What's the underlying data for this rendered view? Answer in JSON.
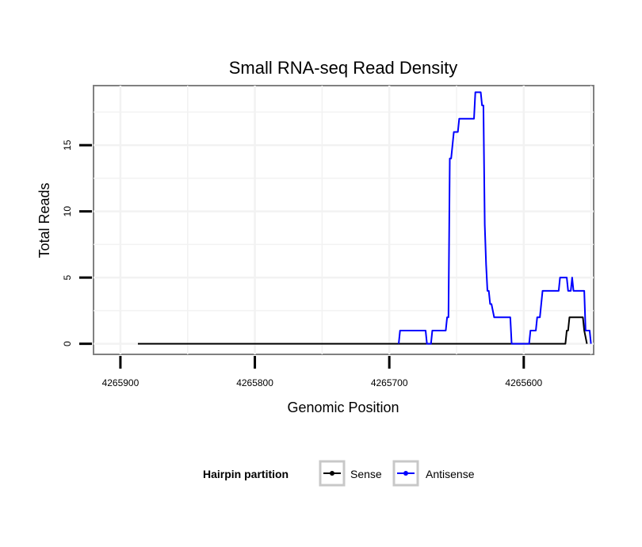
{
  "chart_data": {
    "type": "line",
    "title": "Small RNA-seq Read Density",
    "xlabel": "Genomic Position",
    "ylabel": "Total Reads",
    "x_reversed": true,
    "xlim": [
      4265920,
      4265548
    ],
    "ylim": [
      -0.8,
      19.5
    ],
    "x_ticks": [
      4265900,
      4265800,
      4265700,
      4265600
    ],
    "x_tick_labels": [
      "4265900",
      "4265800",
      "4265700",
      "4265600"
    ],
    "y_ticks": [
      0,
      5,
      10,
      15
    ],
    "y_tick_labels": [
      "0",
      "5",
      "10",
      "15"
    ],
    "grid": true,
    "legend": {
      "title": "Hairpin partition",
      "position": "bottom",
      "entries": [
        {
          "name": "Sense",
          "color": "#000000"
        },
        {
          "name": "Antisense",
          "color": "#0000ff"
        }
      ]
    },
    "series": [
      {
        "name": "Sense",
        "color": "#000000",
        "points": [
          [
            4265887,
            0
          ],
          [
            4265569,
            0
          ],
          [
            4265568,
            1
          ],
          [
            4265567,
            1
          ],
          [
            4265566,
            2
          ],
          [
            4265556,
            2
          ],
          [
            4265555,
            1
          ],
          [
            4265553,
            0
          ]
        ]
      },
      {
        "name": "Antisense",
        "color": "#0000ff",
        "points": [
          [
            4265693,
            0
          ],
          [
            4265692,
            1
          ],
          [
            4265673,
            1
          ],
          [
            4265672,
            0
          ],
          [
            4265672,
            0
          ],
          [
            4265669,
            0
          ],
          [
            4265668,
            1
          ],
          [
            4265658,
            1
          ],
          [
            4265657,
            2
          ],
          [
            4265656,
            2
          ],
          [
            4265655,
            14
          ],
          [
            4265654,
            14
          ],
          [
            4265653,
            15
          ],
          [
            4265652,
            16
          ],
          [
            4265649,
            16
          ],
          [
            4265648,
            17
          ],
          [
            4265637,
            17
          ],
          [
            4265636,
            19
          ],
          [
            4265632,
            19
          ],
          [
            4265631,
            18
          ],
          [
            4265630,
            18
          ],
          [
            4265629,
            9
          ],
          [
            4265628,
            6
          ],
          [
            4265627,
            4
          ],
          [
            4265626,
            4
          ],
          [
            4265625,
            3
          ],
          [
            4265624,
            3
          ],
          [
            4265622,
            2
          ],
          [
            4265610,
            2
          ],
          [
            4265609,
            0
          ],
          [
            4265596,
            0
          ],
          [
            4265595,
            1
          ],
          [
            4265591,
            1
          ],
          [
            4265590,
            2
          ],
          [
            4265588,
            2
          ],
          [
            4265587,
            3
          ],
          [
            4265586,
            4
          ],
          [
            4265574,
            4
          ],
          [
            4265573,
            5
          ],
          [
            4265568,
            5
          ],
          [
            4265567,
            4
          ],
          [
            4265565,
            4
          ],
          [
            4265564,
            5
          ],
          [
            4265563,
            4
          ],
          [
            4265555,
            4
          ],
          [
            4265554,
            1
          ],
          [
            4265551,
            1
          ],
          [
            4265550,
            0
          ]
        ]
      }
    ]
  }
}
